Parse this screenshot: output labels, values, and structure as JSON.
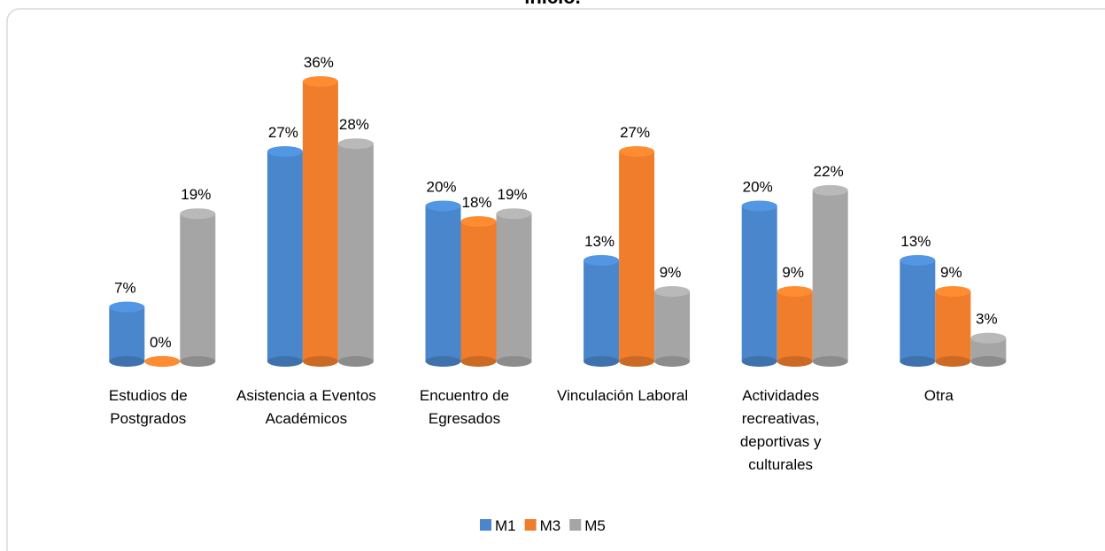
{
  "chart_data": {
    "type": "bar",
    "title": "inicio.",
    "categories": [
      "Estudios de Postgrados",
      "Asistencia a Eventos Académicos",
      "Encuentro de Egresados",
      "Vinculación Laboral",
      "Actividades recreativas, deportivas y culturales",
      "Otra"
    ],
    "series": [
      {
        "name": "M1",
        "color": "#4a86cc",
        "values": [
          7,
          27,
          20,
          13,
          20,
          13
        ],
        "value_labels": [
          "7%",
          "27%",
          "20%",
          "13%",
          "20%",
          "13%"
        ]
      },
      {
        "name": "M3",
        "color": "#ef7d2c",
        "values": [
          0,
          36,
          18,
          27,
          9,
          9
        ],
        "value_labels": [
          "0%",
          "36%",
          "18%",
          "27%",
          "9%",
          "9%"
        ]
      },
      {
        "name": "M5",
        "color": "#a5a5a5",
        "values": [
          19,
          28,
          19,
          9,
          22,
          3
        ],
        "value_labels": [
          "19%",
          "28%",
          "19%",
          "9%",
          "22%",
          "3%"
        ]
      }
    ],
    "legend": "bottom"
  }
}
